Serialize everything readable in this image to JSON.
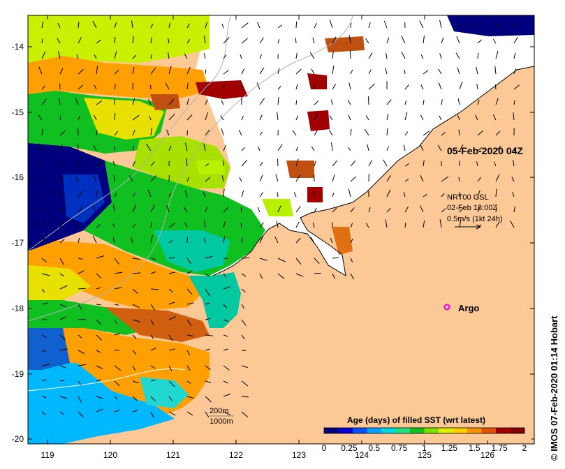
{
  "map": {
    "lon_ticks": [
      "119",
      "120",
      "121",
      "122",
      "123",
      "124",
      "125",
      "126"
    ],
    "lat_ticks": [
      "-14",
      "-15",
      "-16",
      "-17",
      "-18",
      "-19",
      "-20"
    ],
    "land_color": "#fcc896",
    "nodata_color": "#ffffff"
  },
  "annotations": {
    "timestamp": "05-Feb-2020 04Z",
    "current_line1": "NRT00 GSL",
    "current_line2": "02-Feb 18:00Z",
    "current_line3": "0.5m/s (1kt 24h)",
    "argo_label": "Argo",
    "isobath_200": "200m",
    "isobath_1000": "1000m"
  },
  "colorbar": {
    "title": "Age (days) of filled SST (wrt latest)",
    "labels": [
      "0",
      "0.25",
      "0.5",
      "0.75",
      "1",
      "1.25",
      "1.5",
      "1.75",
      "2"
    ],
    "colors": [
      "#00007f",
      "#0000d0",
      "#0050ff",
      "#00a0ff",
      "#00d8e0",
      "#20e080",
      "#10c020",
      "#80e000",
      "#e0f000",
      "#ffd000",
      "#ff9000",
      "#e05000",
      "#a00000",
      "#800000"
    ]
  },
  "credit": "© IMOS 07-Feb-2020 01:14 Hobart"
}
